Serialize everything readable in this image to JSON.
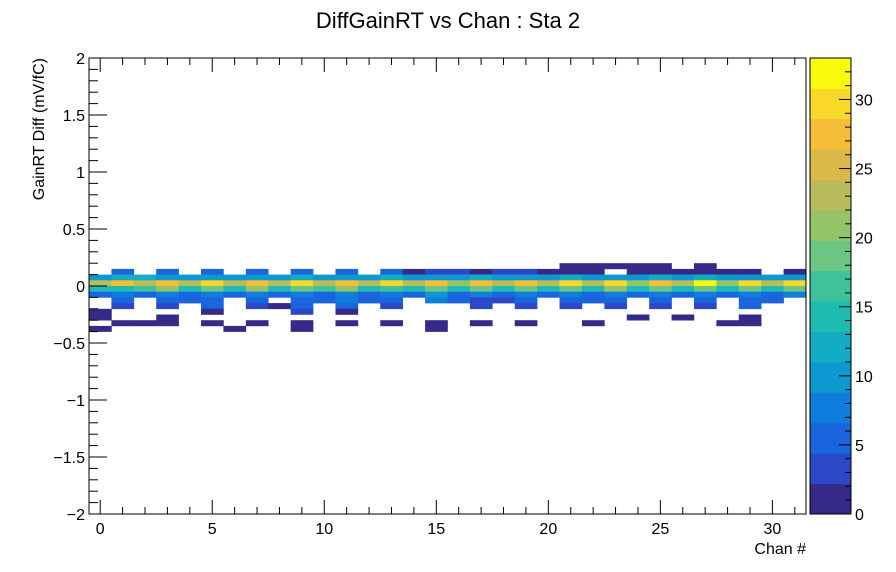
{
  "chart_data": {
    "type": "heatmap",
    "title": "DiffGainRT vs Chan : Sta 2",
    "xlabel": "Chan #",
    "ylabel": "GainRT Diff (mV/fC)",
    "xlim": [
      -0.5,
      31.5
    ],
    "ylim": [
      -2,
      2
    ],
    "zlim": [
      0,
      33
    ],
    "bin_height": 0.05,
    "x_ticks": [
      0,
      5,
      10,
      15,
      20,
      25,
      30
    ],
    "x_tick_labels": [
      "0",
      "5",
      "10",
      "15",
      "20",
      "25",
      "30"
    ],
    "y_ticks": [
      -2,
      -1.5,
      -1,
      -0.5,
      0,
      0.5,
      1,
      1.5,
      2
    ],
    "y_tick_labels": [
      "−2",
      "−1.5",
      "−1",
      "−0.5",
      "0",
      "0.5",
      "1",
      "1.5",
      "2"
    ],
    "z_ticks": [
      0,
      5,
      10,
      15,
      20,
      25,
      30
    ],
    "z_tick_labels": [
      "0",
      "5",
      "10",
      "15",
      "20",
      "25",
      "30"
    ],
    "colormap": [
      "#352a87",
      "#2c48c8",
      "#1a64dd",
      "#0f7ddc",
      "#0d98d0",
      "#12adc4",
      "#1ebbb0",
      "#3fc19a",
      "#6cc580",
      "#95c468",
      "#b9bc5a",
      "#dab84a",
      "#f6bd38",
      "#f8d828",
      "#f9fb0e"
    ],
    "cells": [
      {
        "x": 0,
        "y": 0.075,
        "z": 10
      },
      {
        "x": 0,
        "y": 0.025,
        "z": 22
      },
      {
        "x": 0,
        "y": -0.025,
        "z": 14
      },
      {
        "x": 0,
        "y": -0.075,
        "z": 6
      },
      {
        "x": 0,
        "y": -0.225,
        "z": 2
      },
      {
        "x": 0,
        "y": -0.275,
        "z": 2
      },
      {
        "x": 0,
        "y": -0.375,
        "z": 1
      },
      {
        "x": 1,
        "y": 0.125,
        "z": 5
      },
      {
        "x": 1,
        "y": 0.075,
        "z": 11
      },
      {
        "x": 1,
        "y": 0.025,
        "z": 28
      },
      {
        "x": 1,
        "y": -0.025,
        "z": 14
      },
      {
        "x": 1,
        "y": -0.075,
        "z": 7
      },
      {
        "x": 1,
        "y": -0.125,
        "z": 5
      },
      {
        "x": 1,
        "y": -0.175,
        "z": 4
      },
      {
        "x": 1,
        "y": -0.325,
        "z": 1
      },
      {
        "x": 2,
        "y": 0.075,
        "z": 11
      },
      {
        "x": 2,
        "y": 0.025,
        "z": 23
      },
      {
        "x": 2,
        "y": -0.025,
        "z": 16
      },
      {
        "x": 2,
        "y": -0.075,
        "z": 6
      },
      {
        "x": 2,
        "y": -0.325,
        "z": 2
      },
      {
        "x": 3,
        "y": 0.125,
        "z": 5
      },
      {
        "x": 3,
        "y": 0.075,
        "z": 10
      },
      {
        "x": 3,
        "y": 0.025,
        "z": 28
      },
      {
        "x": 3,
        "y": -0.025,
        "z": 20
      },
      {
        "x": 3,
        "y": -0.075,
        "z": 8
      },
      {
        "x": 3,
        "y": -0.125,
        "z": 5
      },
      {
        "x": 3,
        "y": -0.175,
        "z": 3
      },
      {
        "x": 3,
        "y": -0.275,
        "z": 2
      },
      {
        "x": 3,
        "y": -0.325,
        "z": 1
      },
      {
        "x": 4,
        "y": 0.075,
        "z": 10
      },
      {
        "x": 4,
        "y": 0.025,
        "z": 22
      },
      {
        "x": 4,
        "y": -0.025,
        "z": 15
      },
      {
        "x": 4,
        "y": -0.075,
        "z": 6
      },
      {
        "x": 4,
        "y": -0.125,
        "z": 5
      },
      {
        "x": 5,
        "y": 0.125,
        "z": 5
      },
      {
        "x": 5,
        "y": 0.075,
        "z": 10
      },
      {
        "x": 5,
        "y": 0.025,
        "z": 30
      },
      {
        "x": 5,
        "y": -0.025,
        "z": 19
      },
      {
        "x": 5,
        "y": -0.075,
        "z": 8
      },
      {
        "x": 5,
        "y": -0.125,
        "z": 5
      },
      {
        "x": 5,
        "y": -0.175,
        "z": 5
      },
      {
        "x": 5,
        "y": -0.225,
        "z": 2
      },
      {
        "x": 5,
        "y": -0.325,
        "z": 1
      },
      {
        "x": 6,
        "y": 0.075,
        "z": 10
      },
      {
        "x": 6,
        "y": 0.025,
        "z": 23
      },
      {
        "x": 6,
        "y": -0.025,
        "z": 15
      },
      {
        "x": 6,
        "y": -0.075,
        "z": 5
      },
      {
        "x": 6,
        "y": -0.375,
        "z": 2
      },
      {
        "x": 7,
        "y": 0.125,
        "z": 5
      },
      {
        "x": 7,
        "y": 0.075,
        "z": 10
      },
      {
        "x": 7,
        "y": 0.025,
        "z": 28
      },
      {
        "x": 7,
        "y": -0.025,
        "z": 20
      },
      {
        "x": 7,
        "y": -0.075,
        "z": 7
      },
      {
        "x": 7,
        "y": -0.125,
        "z": 5
      },
      {
        "x": 7,
        "y": -0.175,
        "z": 4
      },
      {
        "x": 7,
        "y": -0.325,
        "z": 2
      },
      {
        "x": 8,
        "y": 0.075,
        "z": 10
      },
      {
        "x": 8,
        "y": 0.025,
        "z": 22
      },
      {
        "x": 8,
        "y": -0.025,
        "z": 15
      },
      {
        "x": 8,
        "y": -0.075,
        "z": 6
      },
      {
        "x": 8,
        "y": -0.175,
        "z": 2
      },
      {
        "x": 9,
        "y": 0.125,
        "z": 5
      },
      {
        "x": 9,
        "y": 0.075,
        "z": 11
      },
      {
        "x": 9,
        "y": 0.025,
        "z": 30
      },
      {
        "x": 9,
        "y": -0.025,
        "z": 18
      },
      {
        "x": 9,
        "y": -0.075,
        "z": 8
      },
      {
        "x": 9,
        "y": -0.125,
        "z": 5
      },
      {
        "x": 9,
        "y": -0.175,
        "z": 6
      },
      {
        "x": 9,
        "y": -0.225,
        "z": 4
      },
      {
        "x": 9,
        "y": -0.325,
        "z": 1
      },
      {
        "x": 9,
        "y": -0.375,
        "z": 1
      },
      {
        "x": 10,
        "y": 0.075,
        "z": 10
      },
      {
        "x": 10,
        "y": 0.025,
        "z": 23
      },
      {
        "x": 10,
        "y": -0.025,
        "z": 16
      },
      {
        "x": 10,
        "y": -0.075,
        "z": 6
      },
      {
        "x": 10,
        "y": -0.125,
        "z": 5
      },
      {
        "x": 11,
        "y": 0.125,
        "z": 5
      },
      {
        "x": 11,
        "y": 0.075,
        "z": 10
      },
      {
        "x": 11,
        "y": 0.025,
        "z": 28
      },
      {
        "x": 11,
        "y": -0.025,
        "z": 20
      },
      {
        "x": 11,
        "y": -0.075,
        "z": 8
      },
      {
        "x": 11,
        "y": -0.125,
        "z": 7
      },
      {
        "x": 11,
        "y": -0.175,
        "z": 5
      },
      {
        "x": 11,
        "y": -0.225,
        "z": 1
      },
      {
        "x": 11,
        "y": -0.325,
        "z": 2
      },
      {
        "x": 12,
        "y": 0.075,
        "z": 10
      },
      {
        "x": 12,
        "y": 0.025,
        "z": 22
      },
      {
        "x": 12,
        "y": -0.025,
        "z": 15
      },
      {
        "x": 12,
        "y": -0.075,
        "z": 6
      },
      {
        "x": 12,
        "y": -0.125,
        "z": 5
      },
      {
        "x": 13,
        "y": 0.125,
        "z": 5
      },
      {
        "x": 13,
        "y": 0.075,
        "z": 11
      },
      {
        "x": 13,
        "y": 0.025,
        "z": 29
      },
      {
        "x": 13,
        "y": -0.025,
        "z": 17
      },
      {
        "x": 13,
        "y": -0.075,
        "z": 7
      },
      {
        "x": 13,
        "y": -0.125,
        "z": 5
      },
      {
        "x": 13,
        "y": -0.175,
        "z": 4
      },
      {
        "x": 13,
        "y": -0.325,
        "z": 1
      },
      {
        "x": 14,
        "y": 0.125,
        "z": 2
      },
      {
        "x": 14,
        "y": 0.075,
        "z": 10
      },
      {
        "x": 14,
        "y": 0.025,
        "z": 22
      },
      {
        "x": 14,
        "y": -0.025,
        "z": 15
      },
      {
        "x": 14,
        "y": -0.075,
        "z": 6
      },
      {
        "x": 15,
        "y": 0.125,
        "z": 3
      },
      {
        "x": 15,
        "y": 0.075,
        "z": 9
      },
      {
        "x": 15,
        "y": 0.025,
        "z": 27
      },
      {
        "x": 15,
        "y": -0.025,
        "z": 19
      },
      {
        "x": 15,
        "y": -0.075,
        "z": 10
      },
      {
        "x": 15,
        "y": -0.125,
        "z": 8
      },
      {
        "x": 15,
        "y": -0.325,
        "z": 1
      },
      {
        "x": 15,
        "y": -0.375,
        "z": 1
      },
      {
        "x": 16,
        "y": 0.125,
        "z": 3
      },
      {
        "x": 16,
        "y": 0.075,
        "z": 10
      },
      {
        "x": 16,
        "y": 0.025,
        "z": 21
      },
      {
        "x": 16,
        "y": -0.025,
        "z": 14
      },
      {
        "x": 16,
        "y": -0.075,
        "z": 6
      },
      {
        "x": 16,
        "y": -0.125,
        "z": 5
      },
      {
        "x": 17,
        "y": 0.125,
        "z": 2
      },
      {
        "x": 17,
        "y": 0.075,
        "z": 11
      },
      {
        "x": 17,
        "y": 0.025,
        "z": 28
      },
      {
        "x": 17,
        "y": -0.025,
        "z": 19
      },
      {
        "x": 17,
        "y": -0.075,
        "z": 7
      },
      {
        "x": 17,
        "y": -0.125,
        "z": 4
      },
      {
        "x": 17,
        "y": -0.175,
        "z": 3
      },
      {
        "x": 17,
        "y": -0.325,
        "z": 2
      },
      {
        "x": 18,
        "y": 0.125,
        "z": 3
      },
      {
        "x": 18,
        "y": 0.075,
        "z": 10
      },
      {
        "x": 18,
        "y": 0.025,
        "z": 22
      },
      {
        "x": 18,
        "y": -0.025,
        "z": 15
      },
      {
        "x": 18,
        "y": -0.075,
        "z": 6
      },
      {
        "x": 18,
        "y": -0.125,
        "z": 4
      },
      {
        "x": 19,
        "y": 0.125,
        "z": 3
      },
      {
        "x": 19,
        "y": 0.075,
        "z": 10
      },
      {
        "x": 19,
        "y": 0.025,
        "z": 28
      },
      {
        "x": 19,
        "y": -0.025,
        "z": 18
      },
      {
        "x": 19,
        "y": -0.075,
        "z": 8
      },
      {
        "x": 19,
        "y": -0.125,
        "z": 5
      },
      {
        "x": 19,
        "y": -0.175,
        "z": 4
      },
      {
        "x": 19,
        "y": -0.325,
        "z": 2
      },
      {
        "x": 20,
        "y": 0.125,
        "z": 2
      },
      {
        "x": 20,
        "y": 0.075,
        "z": 10
      },
      {
        "x": 20,
        "y": 0.025,
        "z": 23
      },
      {
        "x": 20,
        "y": -0.025,
        "z": 15
      },
      {
        "x": 20,
        "y": -0.075,
        "z": 6
      },
      {
        "x": 21,
        "y": 0.175,
        "z": 2
      },
      {
        "x": 21,
        "y": 0.125,
        "z": 2
      },
      {
        "x": 21,
        "y": 0.075,
        "z": 11
      },
      {
        "x": 21,
        "y": 0.025,
        "z": 29
      },
      {
        "x": 21,
        "y": -0.025,
        "z": 18
      },
      {
        "x": 21,
        "y": -0.075,
        "z": 8
      },
      {
        "x": 21,
        "y": -0.125,
        "z": 5
      },
      {
        "x": 21,
        "y": -0.175,
        "z": 4
      },
      {
        "x": 22,
        "y": 0.175,
        "z": 2
      },
      {
        "x": 22,
        "y": 0.125,
        "z": 2
      },
      {
        "x": 22,
        "y": 0.075,
        "z": 10
      },
      {
        "x": 22,
        "y": 0.025,
        "z": 22
      },
      {
        "x": 22,
        "y": -0.025,
        "z": 15
      },
      {
        "x": 22,
        "y": -0.075,
        "z": 6
      },
      {
        "x": 22,
        "y": -0.125,
        "z": 5
      },
      {
        "x": 22,
        "y": -0.325,
        "z": 1
      },
      {
        "x": 23,
        "y": 0.175,
        "z": 2
      },
      {
        "x": 23,
        "y": 0.075,
        "z": 10
      },
      {
        "x": 23,
        "y": 0.025,
        "z": 30
      },
      {
        "x": 23,
        "y": -0.025,
        "z": 20
      },
      {
        "x": 23,
        "y": -0.075,
        "z": 7
      },
      {
        "x": 23,
        "y": -0.125,
        "z": 5
      },
      {
        "x": 23,
        "y": -0.175,
        "z": 3
      },
      {
        "x": 24,
        "y": 0.175,
        "z": 2
      },
      {
        "x": 24,
        "y": 0.125,
        "z": 2
      },
      {
        "x": 24,
        "y": 0.075,
        "z": 10
      },
      {
        "x": 24,
        "y": 0.025,
        "z": 21
      },
      {
        "x": 24,
        "y": -0.025,
        "z": 14
      },
      {
        "x": 24,
        "y": -0.075,
        "z": 5
      },
      {
        "x": 24,
        "y": -0.275,
        "z": 2
      },
      {
        "x": 25,
        "y": 0.175,
        "z": 2
      },
      {
        "x": 25,
        "y": 0.125,
        "z": 2
      },
      {
        "x": 25,
        "y": 0.075,
        "z": 11
      },
      {
        "x": 25,
        "y": 0.025,
        "z": 28
      },
      {
        "x": 25,
        "y": -0.025,
        "z": 19
      },
      {
        "x": 25,
        "y": -0.075,
        "z": 7
      },
      {
        "x": 25,
        "y": -0.125,
        "z": 5
      },
      {
        "x": 25,
        "y": -0.175,
        "z": 4
      },
      {
        "x": 26,
        "y": 0.125,
        "z": 2
      },
      {
        "x": 26,
        "y": 0.075,
        "z": 10
      },
      {
        "x": 26,
        "y": 0.025,
        "z": 22
      },
      {
        "x": 26,
        "y": -0.025,
        "z": 15
      },
      {
        "x": 26,
        "y": -0.075,
        "z": 6
      },
      {
        "x": 26,
        "y": -0.275,
        "z": 2
      },
      {
        "x": 27,
        "y": 0.175,
        "z": 2
      },
      {
        "x": 27,
        "y": 0.125,
        "z": 2
      },
      {
        "x": 27,
        "y": 0.075,
        "z": 11
      },
      {
        "x": 27,
        "y": 0.025,
        "z": 31
      },
      {
        "x": 27,
        "y": -0.025,
        "z": 18
      },
      {
        "x": 27,
        "y": -0.075,
        "z": 8
      },
      {
        "x": 27,
        "y": -0.125,
        "z": 5
      },
      {
        "x": 27,
        "y": -0.175,
        "z": 4
      },
      {
        "x": 28,
        "y": 0.125,
        "z": 2
      },
      {
        "x": 28,
        "y": 0.075,
        "z": 10
      },
      {
        "x": 28,
        "y": 0.025,
        "z": 21
      },
      {
        "x": 28,
        "y": -0.025,
        "z": 14
      },
      {
        "x": 28,
        "y": -0.075,
        "z": 6
      },
      {
        "x": 28,
        "y": -0.325,
        "z": 2
      },
      {
        "x": 29,
        "y": 0.125,
        "z": 2
      },
      {
        "x": 29,
        "y": 0.075,
        "z": 10
      },
      {
        "x": 29,
        "y": 0.025,
        "z": 29
      },
      {
        "x": 29,
        "y": -0.025,
        "z": 19
      },
      {
        "x": 29,
        "y": -0.075,
        "z": 7
      },
      {
        "x": 29,
        "y": -0.125,
        "z": 5
      },
      {
        "x": 29,
        "y": -0.175,
        "z": 5
      },
      {
        "x": 29,
        "y": -0.275,
        "z": 2
      },
      {
        "x": 29,
        "y": -0.325,
        "z": 1
      },
      {
        "x": 30,
        "y": 0.075,
        "z": 10
      },
      {
        "x": 30,
        "y": 0.025,
        "z": 22
      },
      {
        "x": 30,
        "y": -0.025,
        "z": 15
      },
      {
        "x": 30,
        "y": -0.075,
        "z": 6
      },
      {
        "x": 30,
        "y": -0.125,
        "z": 6
      },
      {
        "x": 31,
        "y": 0.125,
        "z": 2
      },
      {
        "x": 31,
        "y": 0.075,
        "z": 10
      },
      {
        "x": 31,
        "y": 0.025,
        "z": 30
      },
      {
        "x": 31,
        "y": -0.025,
        "z": 19
      },
      {
        "x": 31,
        "y": -0.075,
        "z": 8
      }
    ]
  }
}
